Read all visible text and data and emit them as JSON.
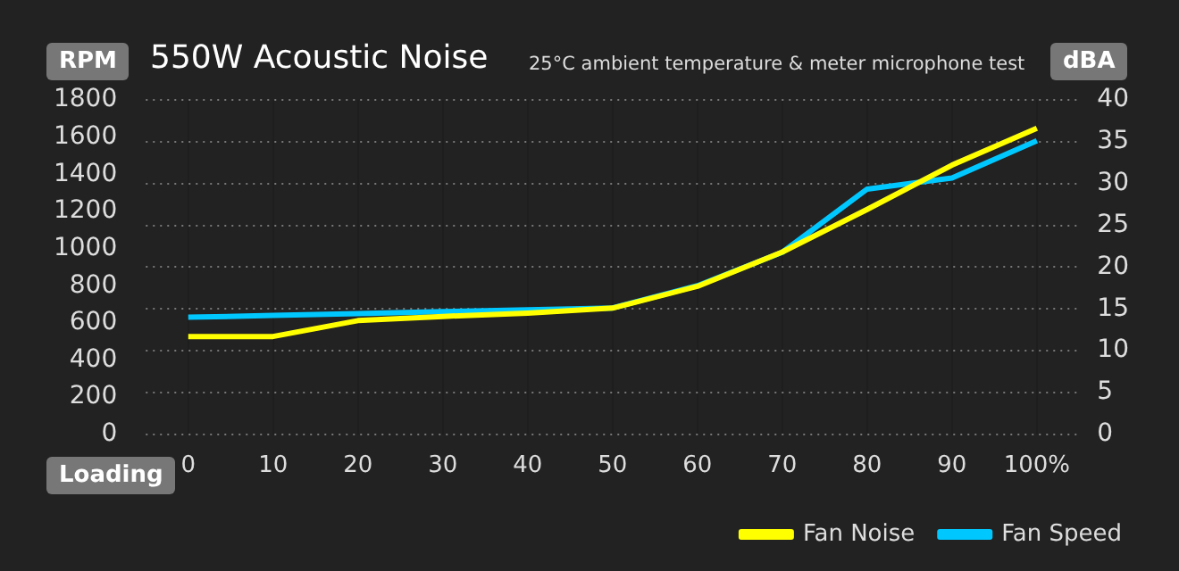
{
  "chart_data": {
    "type": "line",
    "title": "550W Acoustic Noise",
    "subtitle": "25°C ambient temperature & meter microphone test",
    "ylabel": "RPM",
    "y2label": "dBA",
    "xlabel": "Loading",
    "categories": [
      "0",
      "10",
      "20",
      "30",
      "40",
      "50",
      "60",
      "70",
      "80",
      "90",
      "100%"
    ],
    "series": [
      {
        "name": "Fan Speed",
        "color": "#00c8ff",
        "values": [
          630,
          640,
          650,
          660,
          670,
          680,
          800,
          980,
          1320,
          1380,
          1580
        ]
      },
      {
        "name": "Fan Noise",
        "color": "#ffff00",
        "axis": "y2",
        "values": [
          11.7,
          11.7,
          13.6,
          14.1,
          14.5,
          15.1,
          17.7,
          21.8,
          26.9,
          32.2,
          36.6
        ]
      }
    ],
    "ylim": [
      0,
      1800
    ],
    "yticks": [
      0,
      200,
      400,
      600,
      800,
      1000,
      1200,
      1400,
      1600,
      1800
    ],
    "y2lim": [
      0,
      40
    ],
    "y2ticks": [
      0,
      5,
      10,
      15,
      20,
      25,
      30,
      35,
      40
    ],
    "grid": true,
    "legend": "bottom right",
    "marker": "none",
    "line_style": "solid"
  }
}
